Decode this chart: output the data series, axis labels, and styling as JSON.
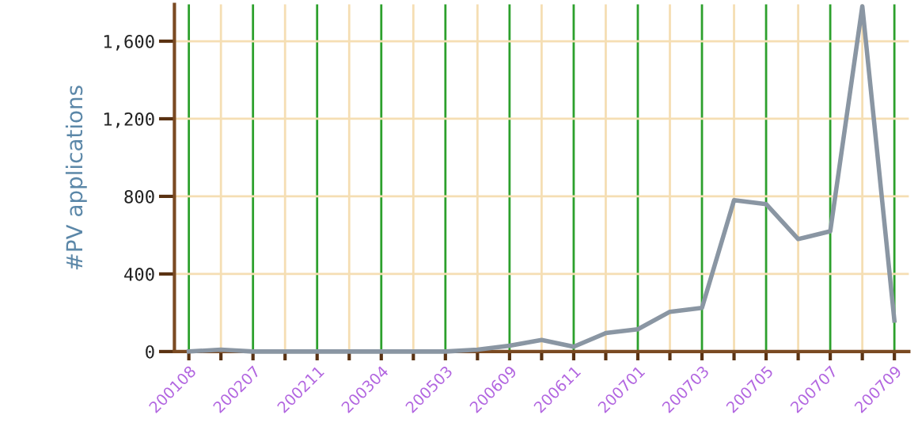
{
  "chart_data": {
    "type": "line",
    "ylabel": "#PV applications",
    "categories": [
      "200108",
      null,
      "200207",
      null,
      "200211",
      null,
      "200304",
      null,
      "200503",
      null,
      "200609",
      null,
      "200611",
      null,
      "200701",
      null,
      "200703",
      null,
      "200705",
      null,
      "200707",
      null,
      "200709"
    ],
    "series": [
      {
        "color": "#8a96a3",
        "values": [
          0,
          10,
          0,
          0,
          0,
          0,
          0,
          0,
          0,
          10,
          30,
          60,
          25,
          95,
          115,
          205,
          225,
          780,
          760,
          580,
          620,
          1780,
          160
        ]
      }
    ],
    "ylim": [
      0,
      1790
    ],
    "yticks": [
      {
        "value": 0,
        "label": "0"
      },
      {
        "value": 400,
        "label": "400"
      },
      {
        "value": 800,
        "label": "800"
      },
      {
        "value": 1200,
        "label": "1,200"
      },
      {
        "value": 1600,
        "label": "1,600"
      }
    ],
    "grid": true,
    "marker": "none",
    "line_style": "solid"
  }
}
